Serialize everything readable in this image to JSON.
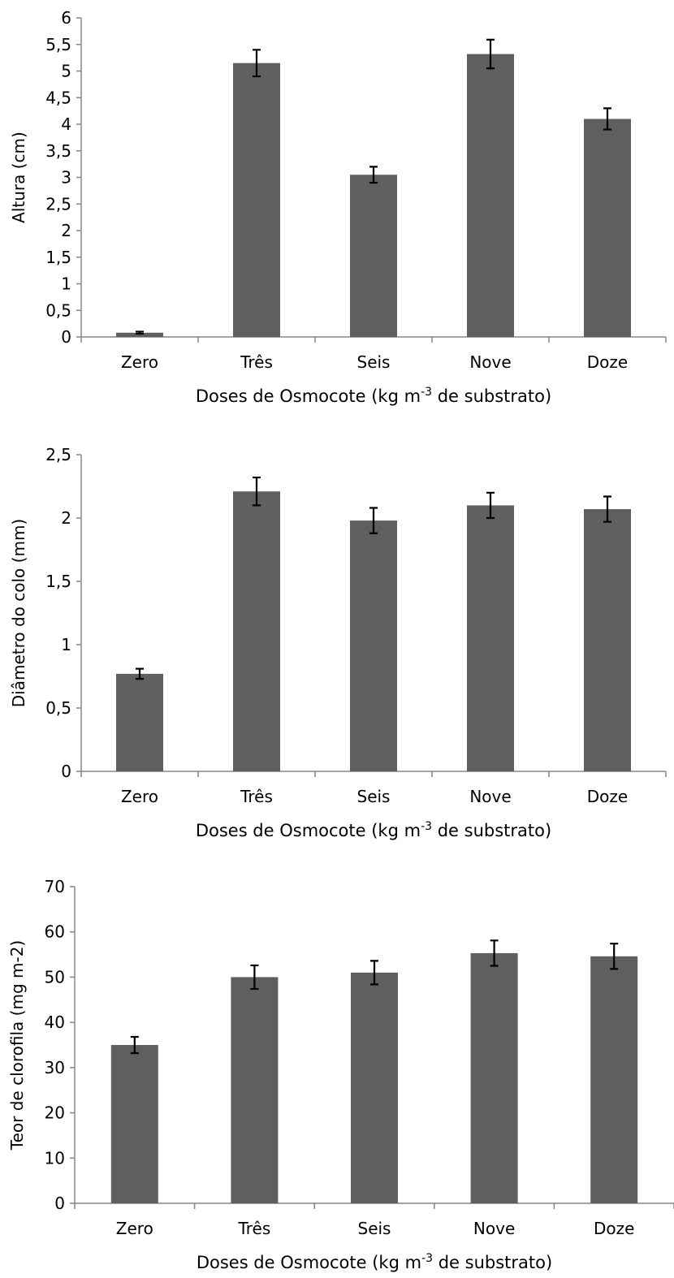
{
  "chart_data": [
    {
      "type": "bar",
      "categories": [
        "Zero",
        "Três",
        "Seis",
        "Nove",
        "Doze"
      ],
      "values": [
        0.08,
        5.15,
        3.05,
        5.32,
        4.1
      ],
      "errors": [
        0.02,
        0.25,
        0.15,
        0.27,
        0.2
      ],
      "ylabel": "Altura (cm)",
      "xlabel_main": "Doses de Osmocote (kg m",
      "xlabel_sup": "-3",
      "xlabel_tail": " de substrato)",
      "ylim": [
        0,
        6
      ],
      "yticks": [
        0,
        0.5,
        1,
        1.5,
        2,
        2.5,
        3,
        3.5,
        4,
        4.5,
        5,
        5.5,
        6
      ],
      "ytick_labels": [
        "0",
        "0,5",
        "1",
        "1,5",
        "2",
        "2,5",
        "3",
        "3,5",
        "4",
        "4,5",
        "5",
        "5,5",
        "6"
      ],
      "bar_color": "#5f5f5f",
      "grid": false
    },
    {
      "type": "bar",
      "categories": [
        "Zero",
        "Três",
        "Seis",
        "Nove",
        "Doze"
      ],
      "values": [
        0.77,
        2.21,
        1.98,
        2.1,
        2.07
      ],
      "errors": [
        0.04,
        0.11,
        0.1,
        0.1,
        0.1
      ],
      "ylabel": "Diâmetro do colo (mm)",
      "xlabel_main": "Doses de Osmocote (kg m",
      "xlabel_sup": "-3",
      "xlabel_tail": " de substrato)",
      "ylim": [
        0,
        2.5
      ],
      "yticks": [
        0,
        0.5,
        1,
        1.5,
        2,
        2.5
      ],
      "ytick_labels": [
        "0",
        "0,5",
        "1",
        "1,5",
        "2",
        "2,5"
      ],
      "bar_color": "#5f5f5f",
      "grid": false
    },
    {
      "type": "bar",
      "categories": [
        "Zero",
        "Três",
        "Seis",
        "Nove",
        "Doze"
      ],
      "values": [
        35,
        50,
        51,
        55.3,
        54.6
      ],
      "errors": [
        1.8,
        2.6,
        2.6,
        2.8,
        2.8
      ],
      "ylabel": "Teor de clorofila (mg m-2)",
      "xlabel_main": "Doses de Osmocote (kg m",
      "xlabel_sup": "-3",
      "xlabel_tail": " de substrato)",
      "ylim": [
        0,
        70
      ],
      "yticks": [
        0,
        10,
        20,
        30,
        40,
        50,
        60,
        70
      ],
      "ytick_labels": [
        "0",
        "10",
        "20",
        "30",
        "40",
        "50",
        "60",
        "70"
      ],
      "bar_color": "#5f5f5f",
      "grid": false
    }
  ]
}
